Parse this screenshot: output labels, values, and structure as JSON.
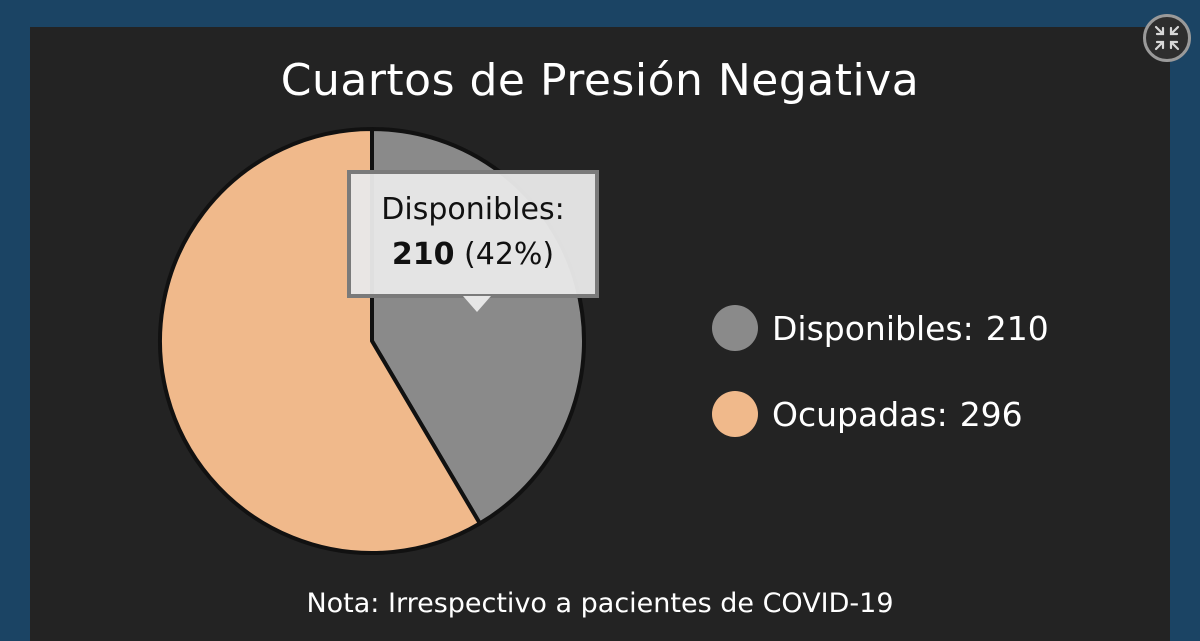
{
  "chart_data": {
    "type": "pie",
    "title": "Cuartos de Presión Negativa",
    "slices": [
      {
        "label": "Disponibles",
        "value": 210,
        "color": "#8a8a8a"
      },
      {
        "label": "Ocupadas",
        "value": 296,
        "color": "#f0b98b"
      }
    ],
    "legend_position": "right",
    "tooltip": {
      "label": "Disponibles:",
      "value": "210",
      "percent": "(42%)"
    },
    "note": "Nota: Irrespectivo a pacientes de COVID-19"
  },
  "legend": [
    {
      "label": "Disponibles:",
      "value": "210",
      "color": "#8a8a8a"
    },
    {
      "label": "Ocupadas:",
      "value": "296",
      "color": "#f0b98b"
    }
  ],
  "controls": {
    "fullscreen_icon": "collapse-arrows-icon"
  }
}
